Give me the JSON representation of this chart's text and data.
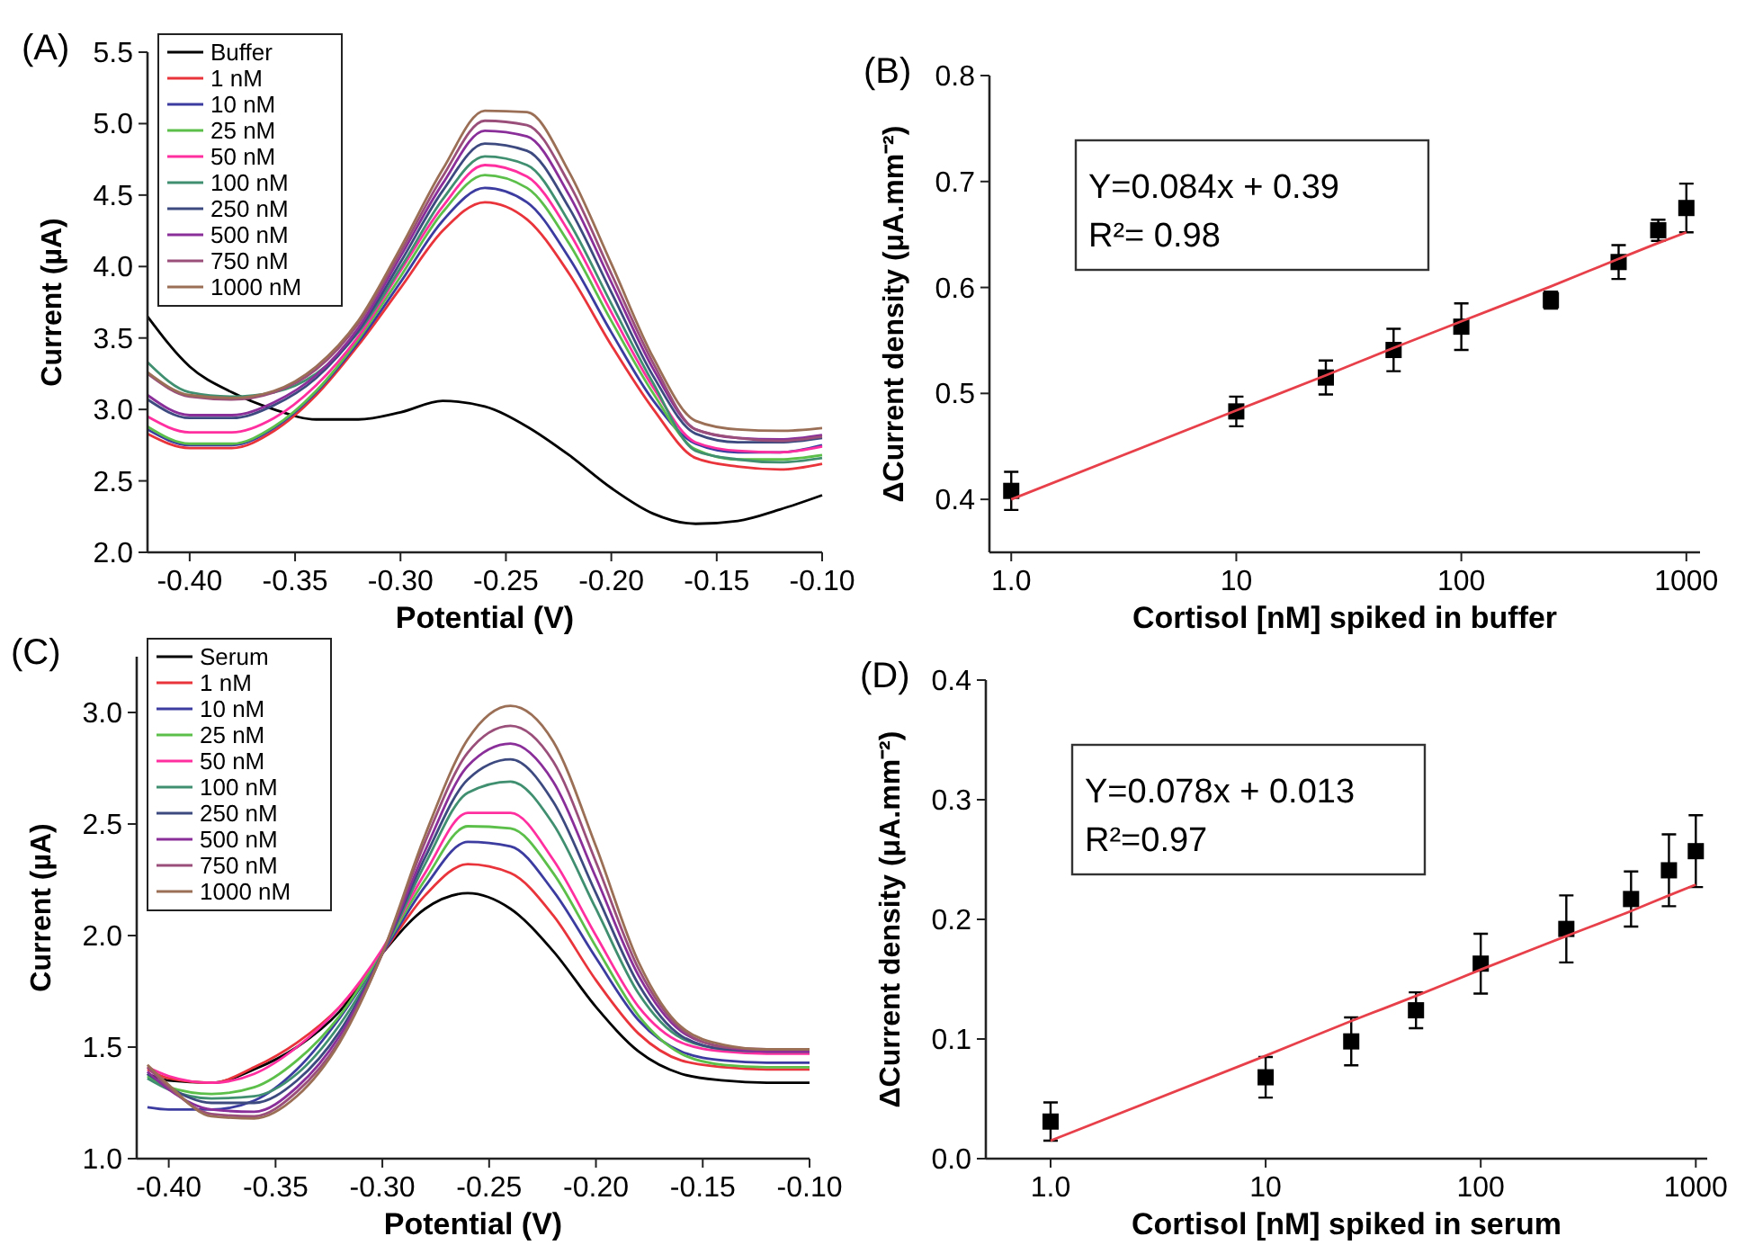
{
  "chart_data": [
    {
      "type": "line",
      "title": "(A)",
      "xlabel": "Potential (V)",
      "ylabel": "Current (µA)",
      "xlim": [
        -0.42,
        -0.1
      ],
      "ylim": [
        2.0,
        5.5
      ],
      "xticks": [
        {
          "value": -0.4,
          "label": "-0.40"
        },
        {
          "value": -0.35,
          "label": "-0.35"
        },
        {
          "value": -0.3,
          "label": "-0.30"
        },
        {
          "value": -0.25,
          "label": "-0.25"
        },
        {
          "value": -0.2,
          "label": "-0.20"
        },
        {
          "value": -0.15,
          "label": "-0.15"
        },
        {
          "value": -0.1,
          "label": "-0.10"
        }
      ],
      "yticks": [
        {
          "value": 2,
          "label": "2.0"
        },
        {
          "value": 2.5,
          "label": "2.5"
        },
        {
          "value": 3,
          "label": "3.0"
        },
        {
          "value": 3.5,
          "label": "3.5"
        },
        {
          "value": 4,
          "label": "4.0"
        },
        {
          "value": 4.5,
          "label": "4.5"
        },
        {
          "value": 5,
          "label": "5.0"
        },
        {
          "value": 5.5,
          "label": "5.5"
        }
      ],
      "legend": "top left",
      "x": [
        -0.42,
        -0.4,
        -0.38,
        -0.36,
        -0.34,
        -0.32,
        -0.3,
        -0.28,
        -0.26,
        -0.24,
        -0.22,
        -0.2,
        -0.18,
        -0.16,
        -0.14,
        -0.12,
        -0.1
      ],
      "series": [
        {
          "name": "Buffer",
          "color": "#000000",
          "values": [
            3.65,
            3.3,
            3.12,
            3.0,
            2.93,
            2.93,
            2.98,
            3.06,
            3.02,
            2.88,
            2.68,
            2.45,
            2.27,
            2.2,
            2.22,
            2.3,
            2.4
          ]
        },
        {
          "name": "1 nM",
          "color": "#e8343a",
          "values": [
            2.83,
            2.73,
            2.73,
            2.85,
            3.1,
            3.45,
            3.85,
            4.25,
            4.45,
            4.33,
            3.95,
            3.45,
            3.0,
            2.66,
            2.6,
            2.58,
            2.62
          ]
        },
        {
          "name": "10 nM",
          "color": "#3b3ba0",
          "values": [
            2.86,
            2.75,
            2.75,
            2.87,
            3.12,
            3.47,
            3.89,
            4.32,
            4.55,
            4.45,
            4.06,
            3.54,
            3.06,
            2.76,
            2.7,
            2.7,
            2.75
          ]
        },
        {
          "name": "25 nM",
          "color": "#5cbf4a",
          "values": [
            2.88,
            2.76,
            2.76,
            2.88,
            3.13,
            3.49,
            3.93,
            4.38,
            4.64,
            4.55,
            4.16,
            3.62,
            3.11,
            2.72,
            2.65,
            2.65,
            2.68
          ]
        },
        {
          "name": "50 nM",
          "color": "#ff2fa0",
          "values": [
            2.95,
            2.84,
            2.84,
            2.94,
            3.17,
            3.51,
            3.97,
            4.42,
            4.71,
            4.63,
            4.24,
            3.68,
            3.15,
            2.77,
            2.71,
            2.7,
            2.74
          ]
        },
        {
          "name": "100 nM",
          "color": "#3f8f70",
          "values": [
            3.33,
            3.12,
            3.09,
            3.12,
            3.25,
            3.54,
            3.99,
            4.47,
            4.77,
            4.71,
            4.31,
            3.74,
            3.18,
            2.71,
            2.65,
            2.63,
            2.66
          ]
        },
        {
          "name": "250 nM",
          "color": "#3d4a80",
          "values": [
            3.07,
            2.94,
            2.94,
            3.03,
            3.22,
            3.55,
            4.03,
            4.53,
            4.86,
            4.81,
            4.41,
            3.82,
            3.23,
            2.83,
            2.77,
            2.77,
            2.8
          ]
        },
        {
          "name": "500 nM",
          "color": "#8a2f9a",
          "values": [
            3.1,
            2.96,
            2.96,
            3.05,
            3.24,
            3.57,
            4.07,
            4.58,
            4.95,
            4.91,
            4.5,
            3.89,
            3.28,
            2.86,
            2.8,
            2.79,
            2.82
          ]
        },
        {
          "name": "750 nM",
          "color": "#9a4f7a",
          "values": [
            3.25,
            3.09,
            3.07,
            3.12,
            3.28,
            3.6,
            4.1,
            4.63,
            5.02,
            4.99,
            4.58,
            3.95,
            3.32,
            2.86,
            2.8,
            2.78,
            2.81
          ]
        },
        {
          "name": "1000 nM",
          "color": "#9a6f55",
          "values": [
            3.26,
            3.1,
            3.08,
            3.13,
            3.3,
            3.62,
            4.13,
            4.68,
            5.09,
            5.08,
            4.66,
            4.02,
            3.36,
            2.92,
            2.86,
            2.85,
            2.87
          ]
        }
      ]
    },
    {
      "type": "scatter",
      "title": "(B)",
      "xlabel": "Cortisol [nM] spiked in buffer",
      "ylabel": "ΔCurrent density (μA.mm⁻²)",
      "log": "x",
      "xlim": [
        0.8,
        1150
      ],
      "ylim": [
        0.35,
        0.8
      ],
      "xticks": [
        {
          "value": 1,
          "label": "1.0"
        },
        10,
        100,
        1000
      ],
      "yticks": [
        0.4,
        0.5,
        0.6,
        0.7,
        0.8
      ],
      "legend": false,
      "annotations": [
        "Y=0.084x + 0.39",
        "R²= 0.98"
      ],
      "x": [
        1,
        10,
        25,
        50,
        100,
        250,
        500,
        750,
        1000
      ],
      "series": [
        {
          "color": "#000000",
          "marker": "square",
          "values": [
            0.408,
            0.483,
            0.515,
            0.541,
            0.563,
            0.588,
            0.624,
            0.654,
            0.675
          ],
          "errors": [
            0.018,
            0.014,
            0.016,
            0.02,
            0.022,
            0.008,
            0.016,
            0.01,
            0.023
          ]
        },
        {
          "type": "line",
          "color": "#e8404a",
          "values": [
            0.4,
            0.484,
            0.517,
            0.543,
            0.568,
            0.601,
            0.627,
            0.642,
            0.652
          ]
        }
      ]
    },
    {
      "type": "line",
      "title": "(C)",
      "xlabel": "Potential (V)",
      "ylabel": "Current (µA)",
      "xlim": [
        -0.415,
        -0.1
      ],
      "ylim": [
        1.0,
        3.25
      ],
      "xticks": [
        {
          "value": -0.4,
          "label": "-0.40"
        },
        {
          "value": -0.35,
          "label": "-0.35"
        },
        {
          "value": -0.3,
          "label": "-0.30"
        },
        {
          "value": -0.25,
          "label": "-0.25"
        },
        {
          "value": -0.2,
          "label": "-0.20"
        },
        {
          "value": -0.15,
          "label": "-0.15"
        },
        {
          "value": -0.1,
          "label": "-0.10"
        }
      ],
      "yticks": [
        {
          "value": 1,
          "label": "1.0"
        },
        {
          "value": 1.5,
          "label": "1.5"
        },
        {
          "value": 2,
          "label": "2.0"
        },
        {
          "value": 2.5,
          "label": "2.5"
        },
        {
          "value": 3,
          "label": "3.0"
        }
      ],
      "legend": "top left",
      "x": [
        -0.41,
        -0.4,
        -0.38,
        -0.36,
        -0.34,
        -0.32,
        -0.3,
        -0.28,
        -0.26,
        -0.24,
        -0.22,
        -0.2,
        -0.18,
        -0.16,
        -0.14,
        -0.12,
        -0.1
      ],
      "series": [
        {
          "name": "Serum",
          "color": "#000000",
          "values": [
            1.38,
            1.35,
            1.34,
            1.4,
            1.5,
            1.66,
            1.92,
            2.12,
            2.19,
            2.12,
            1.93,
            1.68,
            1.48,
            1.38,
            1.35,
            1.34,
            1.34
          ]
        },
        {
          "name": "1 nM",
          "color": "#e8343a",
          "values": [
            1.4,
            1.36,
            1.34,
            1.41,
            1.52,
            1.68,
            1.92,
            2.18,
            2.32,
            2.28,
            2.09,
            1.8,
            1.56,
            1.44,
            1.41,
            1.4,
            1.4
          ]
        },
        {
          "name": "10 nM",
          "color": "#3b3ba0",
          "values": [
            1.23,
            1.22,
            1.22,
            1.26,
            1.4,
            1.63,
            1.92,
            2.22,
            2.42,
            2.4,
            2.2,
            1.9,
            1.62,
            1.48,
            1.44,
            1.43,
            1.43
          ]
        },
        {
          "name": "25 nM",
          "color": "#5cbf4a",
          "values": [
            1.37,
            1.32,
            1.29,
            1.32,
            1.44,
            1.64,
            1.93,
            2.25,
            2.49,
            2.48,
            2.28,
            1.95,
            1.64,
            1.47,
            1.42,
            1.41,
            1.41
          ]
        },
        {
          "name": "50 nM",
          "color": "#ff2fa0",
          "values": [
            1.41,
            1.37,
            1.34,
            1.38,
            1.5,
            1.68,
            1.94,
            2.28,
            2.55,
            2.55,
            2.34,
            2.0,
            1.68,
            1.52,
            1.48,
            1.47,
            1.47
          ]
        },
        {
          "name": "100 nM",
          "color": "#3f8f70",
          "values": [
            1.36,
            1.31,
            1.27,
            1.28,
            1.38,
            1.6,
            1.92,
            2.32,
            2.64,
            2.69,
            2.5,
            2.12,
            1.74,
            1.54,
            1.49,
            1.48,
            1.48
          ]
        },
        {
          "name": "250 nM",
          "color": "#3d4a80",
          "values": [
            1.38,
            1.32,
            1.25,
            1.25,
            1.35,
            1.57,
            1.92,
            2.35,
            2.7,
            2.79,
            2.6,
            2.19,
            1.78,
            1.55,
            1.49,
            1.48,
            1.48
          ]
        },
        {
          "name": "500 nM",
          "color": "#8a2f9a",
          "values": [
            1.39,
            1.31,
            1.22,
            1.21,
            1.32,
            1.55,
            1.92,
            2.38,
            2.76,
            2.86,
            2.69,
            2.26,
            1.82,
            1.57,
            1.5,
            1.48,
            1.48
          ]
        },
        {
          "name": "750 nM",
          "color": "#9a4f7a",
          "values": [
            1.41,
            1.32,
            1.2,
            1.19,
            1.3,
            1.53,
            1.92,
            2.42,
            2.82,
            2.94,
            2.78,
            2.33,
            1.85,
            1.58,
            1.5,
            1.49,
            1.49
          ]
        },
        {
          "name": "1000 nM",
          "color": "#9a6f55",
          "values": [
            1.42,
            1.33,
            1.19,
            1.18,
            1.28,
            1.52,
            1.92,
            2.45,
            2.88,
            3.03,
            2.87,
            2.4,
            1.88,
            1.59,
            1.51,
            1.49,
            1.49
          ]
        }
      ]
    },
    {
      "type": "scatter",
      "title": "(D)",
      "xlabel": "Cortisol [nM] spiked in serum",
      "ylabel": "ΔCurrent density (μA.mm⁻²)",
      "log": "x",
      "xlim": [
        0.5,
        1130
      ],
      "ylim": [
        0,
        0.4
      ],
      "xticks": [
        {
          "value": 1,
          "label": "1.0"
        },
        10,
        100,
        1000
      ],
      "yticks": [
        {
          "value": 0,
          "label": "0.0"
        },
        0.1,
        0.2,
        0.3,
        0.4
      ],
      "legend": false,
      "annotations": [
        "Y=0.078x + 0.013",
        "R²=0.97"
      ],
      "x": [
        1,
        10,
        25,
        50,
        100,
        250,
        500,
        750,
        1000
      ],
      "series": [
        {
          "color": "#000000",
          "marker": "square",
          "values": [
            0.031,
            0.068,
            0.098,
            0.124,
            0.163,
            0.192,
            0.217,
            0.241,
            0.257
          ],
          "errors": [
            0.016,
            0.017,
            0.02,
            0.015,
            0.025,
            0.028,
            0.023,
            0.03,
            0.03
          ]
        },
        {
          "type": "line",
          "color": "#e8404a",
          "values": [
            0.015,
            0.086,
            0.115,
            0.136,
            0.158,
            0.186,
            0.207,
            0.22,
            0.229
          ]
        }
      ]
    }
  ]
}
